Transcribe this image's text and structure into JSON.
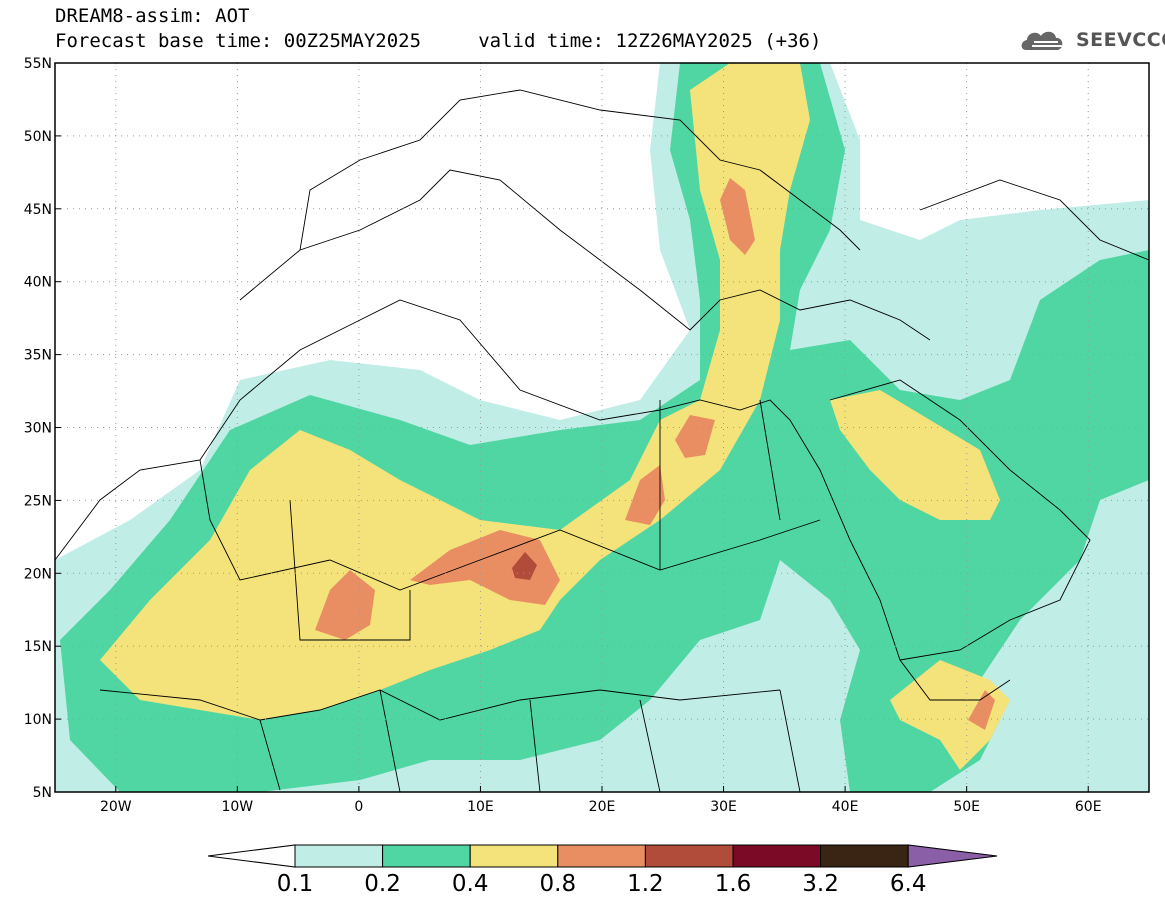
{
  "header": {
    "line1": "DREAM8-assim: AOT",
    "line2": "Forecast base time: 00Z25MAY2025     valid time: 12Z26MAY2025 (+36)"
  },
  "brand": {
    "name": "SEEVCCC",
    "icon": "cloud-logo-icon"
  },
  "map": {
    "lon_range": [
      -25,
      65
    ],
    "lat_range": [
      5,
      55
    ],
    "grid": "dotted",
    "lon_ticks": [
      {
        "lon": -20,
        "label": "20W"
      },
      {
        "lon": -10,
        "label": "10W"
      },
      {
        "lon": 0,
        "label": "0"
      },
      {
        "lon": 10,
        "label": "10E"
      },
      {
        "lon": 20,
        "label": "20E"
      },
      {
        "lon": 30,
        "label": "30E"
      },
      {
        "lon": 40,
        "label": "40E"
      },
      {
        "lon": 50,
        "label": "50E"
      },
      {
        "lon": 60,
        "label": "60E"
      }
    ],
    "lat_ticks": [
      {
        "lat": 55,
        "label": "55N"
      },
      {
        "lat": 50,
        "label": "50N"
      },
      {
        "lat": 45,
        "label": "45N"
      },
      {
        "lat": 40,
        "label": "40N"
      },
      {
        "lat": 35,
        "label": "35N"
      },
      {
        "lat": 30,
        "label": "30N"
      },
      {
        "lat": 25,
        "label": "25N"
      },
      {
        "lat": 20,
        "label": "20N"
      },
      {
        "lat": 15,
        "label": "15N"
      },
      {
        "lat": 10,
        "label": "10N"
      },
      {
        "lat": 5,
        "label": "5N"
      }
    ]
  },
  "legend": {
    "boundaries": [
      "0.1",
      "0.2",
      "0.4",
      "0.8",
      "1.2",
      "1.6",
      "3.2",
      "6.4"
    ],
    "colors": [
      "#c0ede6",
      "#4fd6a3",
      "#f4e37a",
      "#e98e62",
      "#b14c3b",
      "#7b0a26",
      "#3a2413"
    ],
    "under_color": "#ffffff",
    "over_color": "#8a5fa8"
  },
  "colors": {
    "aot_0_1": "#c0ede6",
    "aot_0_2": "#4fd6a3",
    "aot_0_4": "#f4e37a",
    "aot_0_8": "#e98e62",
    "aot_1_2": "#b14c3b"
  }
}
